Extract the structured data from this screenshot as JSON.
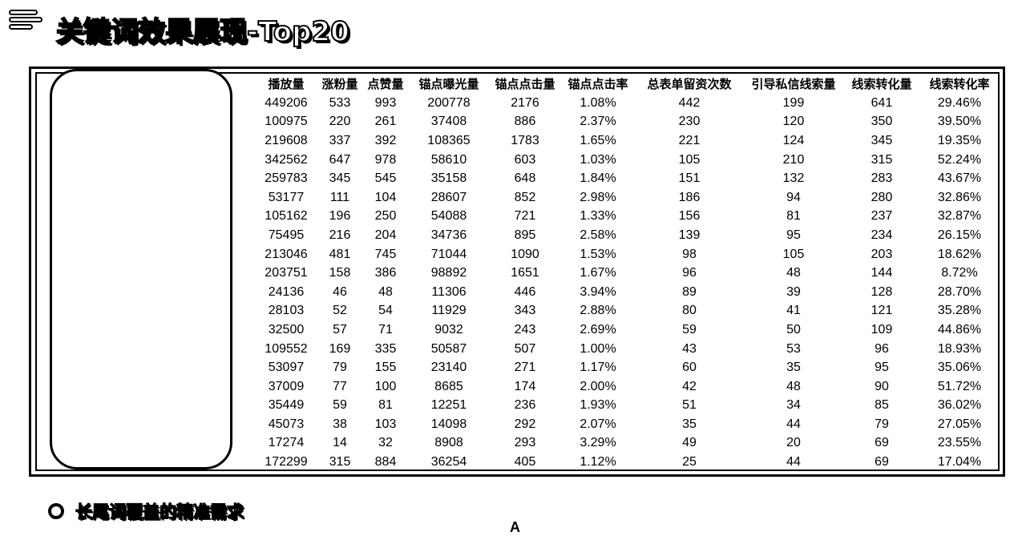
{
  "header": {
    "menu_icon": "menu-lines-icon",
    "title": "关键词效果展现-Top20"
  },
  "table": {
    "columns": [
      "播放量",
      "涨粉量",
      "点赞量",
      "锚点曝光量",
      "锚点点击量",
      "锚点点击率",
      "总表单留资次数",
      "引导私信线索量",
      "线索转化量",
      "线索转化率"
    ],
    "rows": [
      [
        "449206",
        "533",
        "993",
        "200778",
        "2176",
        "1.08%",
        "442",
        "199",
        "641",
        "29.46%"
      ],
      [
        "100975",
        "220",
        "261",
        "37408",
        "886",
        "2.37%",
        "230",
        "120",
        "350",
        "39.50%"
      ],
      [
        "219608",
        "337",
        "392",
        "108365",
        "1783",
        "1.65%",
        "221",
        "124",
        "345",
        "19.35%"
      ],
      [
        "342562",
        "647",
        "978",
        "58610",
        "603",
        "1.03%",
        "105",
        "210",
        "315",
        "52.24%"
      ],
      [
        "259783",
        "345",
        "545",
        "35158",
        "648",
        "1.84%",
        "151",
        "132",
        "283",
        "43.67%"
      ],
      [
        "53177",
        "111",
        "104",
        "28607",
        "852",
        "2.98%",
        "186",
        "94",
        "280",
        "32.86%"
      ],
      [
        "105162",
        "196",
        "250",
        "54088",
        "721",
        "1.33%",
        "156",
        "81",
        "237",
        "32.87%"
      ],
      [
        "75495",
        "216",
        "204",
        "34736",
        "895",
        "2.58%",
        "139",
        "95",
        "234",
        "26.15%"
      ],
      [
        "213046",
        "481",
        "745",
        "71044",
        "1090",
        "1.53%",
        "98",
        "105",
        "203",
        "18.62%"
      ],
      [
        "203751",
        "158",
        "386",
        "98892",
        "1651",
        "1.67%",
        "96",
        "48",
        "144",
        "8.72%"
      ],
      [
        "24136",
        "46",
        "48",
        "11306",
        "446",
        "3.94%",
        "89",
        "39",
        "128",
        "28.70%"
      ],
      [
        "28103",
        "52",
        "54",
        "11929",
        "343",
        "2.88%",
        "80",
        "41",
        "121",
        "35.28%"
      ],
      [
        "32500",
        "57",
        "71",
        "9032",
        "243",
        "2.69%",
        "59",
        "50",
        "109",
        "44.86%"
      ],
      [
        "109552",
        "169",
        "335",
        "50587",
        "507",
        "1.00%",
        "43",
        "53",
        "96",
        "18.93%"
      ],
      [
        "53097",
        "79",
        "155",
        "23140",
        "271",
        "1.17%",
        "60",
        "35",
        "95",
        "35.06%"
      ],
      [
        "37009",
        "77",
        "100",
        "8685",
        "174",
        "2.00%",
        "42",
        "48",
        "90",
        "51.72%"
      ],
      [
        "35449",
        "59",
        "81",
        "12251",
        "236",
        "1.93%",
        "51",
        "34",
        "85",
        "36.02%"
      ],
      [
        "45073",
        "38",
        "103",
        "14098",
        "292",
        "2.07%",
        "35",
        "44",
        "79",
        "27.05%"
      ],
      [
        "17274",
        "14",
        "32",
        "8908",
        "293",
        "3.29%",
        "49",
        "20",
        "69",
        "23.55%"
      ],
      [
        "172299",
        "315",
        "884",
        "36254",
        "405",
        "1.12%",
        "25",
        "44",
        "69",
        "17.04%"
      ]
    ]
  },
  "section": {
    "bullet_icon": "circle-bullet-icon",
    "text": "长尾词覆盖的精准需求"
  },
  "footer": {
    "stray_glyph": "A"
  }
}
